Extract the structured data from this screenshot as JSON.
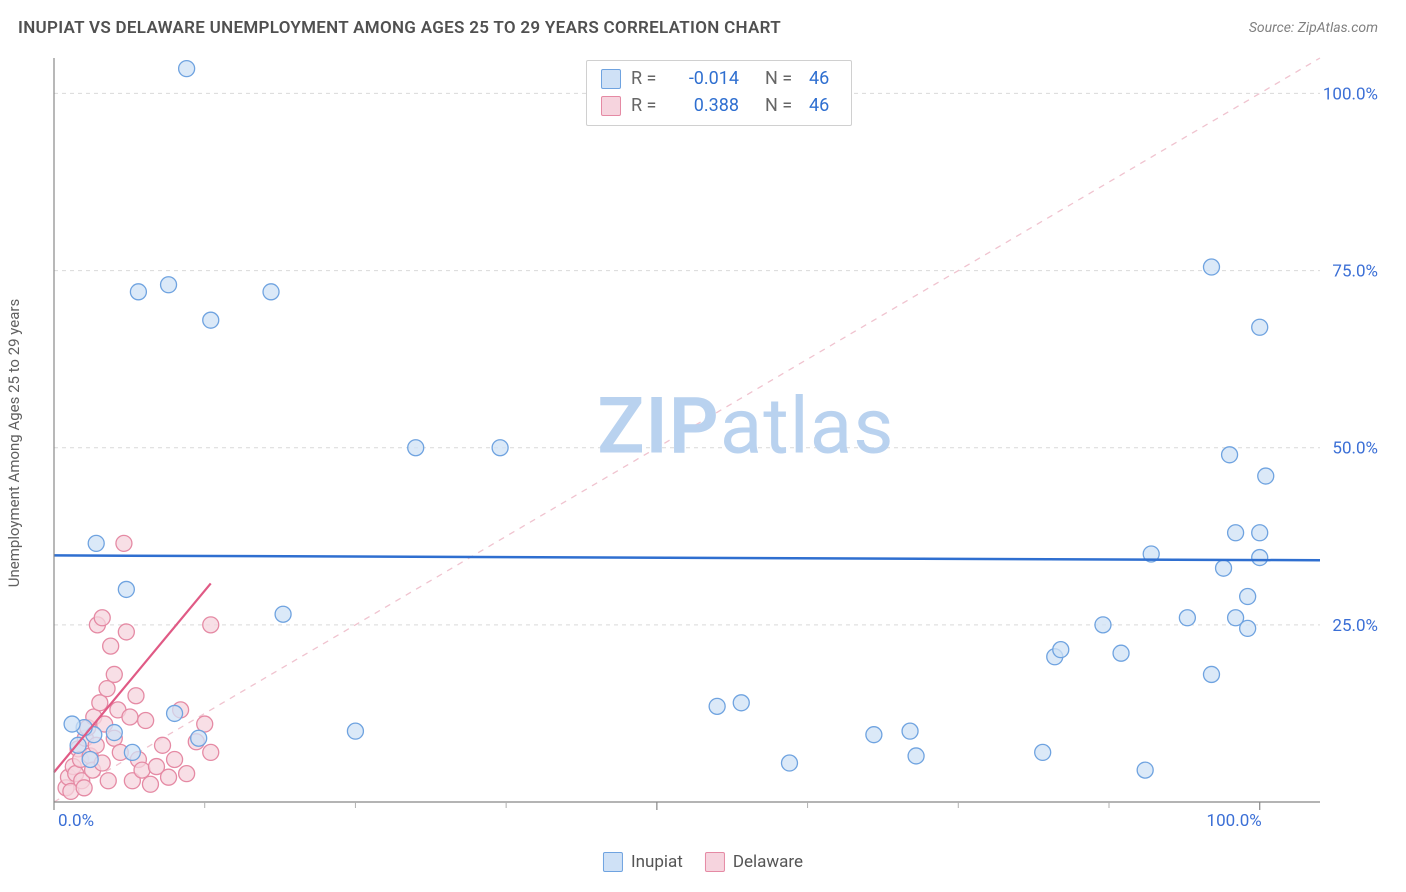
{
  "title": "INUPIAT VS DELAWARE UNEMPLOYMENT AMONG AGES 25 TO 29 YEARS CORRELATION CHART",
  "source": "Source: ZipAtlas.com",
  "ylabel": "Unemployment Among Ages 25 to 29 years",
  "watermark_bold": "ZIP",
  "watermark_rest": "atlas",
  "watermark_color": "#b9d2ef",
  "chart": {
    "type": "scatter",
    "xlim": [
      0,
      105
    ],
    "ylim": [
      0,
      105
    ],
    "grid_color": "#d9d9d9",
    "grid_dash": "4,4",
    "axis_color": "#888888",
    "tick_color": "#b0b0b0",
    "background": "#ffffff",
    "x_ticks": [
      0,
      50,
      100
    ],
    "x_tick_labels": [
      "0.0%",
      "",
      "100.0%"
    ],
    "x_tick_label_color": "#3b6fd6",
    "x_minor_ticks": [
      12.5,
      25,
      37.5,
      62.5,
      75,
      87.5
    ],
    "y_gridlines": [
      25,
      50,
      75,
      100
    ],
    "y_tick_labels": [
      "25.0%",
      "50.0%",
      "75.0%",
      "100.0%"
    ],
    "y_tick_label_color": "#3b6fd6",
    "marker_radius": 8,
    "marker_stroke_width": 1.3,
    "series": [
      {
        "name": "Inupiat",
        "fill": "#cfe1f6",
        "stroke": "#6fa3e0",
        "trend": {
          "slope": -0.0065,
          "intercept": 34.8,
          "color": "#2f6fd0",
          "width": 2.5,
          "dash": null
        },
        "r": "-0.014",
        "r_color": "#2f6fd0",
        "n": "46",
        "n_color": "#2f6fd0",
        "points": [
          [
            11,
            103.5
          ],
          [
            7,
            72
          ],
          [
            9.5,
            73
          ],
          [
            13,
            68
          ],
          [
            18,
            72
          ],
          [
            3.5,
            36.5
          ],
          [
            6,
            30
          ],
          [
            3.3,
            9.5
          ],
          [
            10,
            12.5
          ],
          [
            12,
            9
          ],
          [
            5,
            9.8
          ],
          [
            2.5,
            10.5
          ],
          [
            3,
            6
          ],
          [
            19,
            26.5
          ],
          [
            25,
            10
          ],
          [
            30,
            50
          ],
          [
            37,
            50
          ],
          [
            55,
            13.5
          ],
          [
            57,
            14
          ],
          [
            61,
            5.5
          ],
          [
            68,
            9.5
          ],
          [
            71,
            10
          ],
          [
            71.5,
            6.5
          ],
          [
            82,
            7
          ],
          [
            83,
            20.5
          ],
          [
            83.5,
            21.5
          ],
          [
            87,
            25
          ],
          [
            88.5,
            21
          ],
          [
            90.5,
            4.5
          ],
          [
            91,
            35
          ],
          [
            94,
            26
          ],
          [
            96,
            18
          ],
          [
            97,
            33
          ],
          [
            97.5,
            49
          ],
          [
            98,
            26
          ],
          [
            98,
            38
          ],
          [
            99,
            29
          ],
          [
            99,
            24.5
          ],
          [
            100,
            38
          ],
          [
            100.5,
            46
          ],
          [
            100,
            34.5
          ],
          [
            96,
            75.5
          ],
          [
            100,
            67
          ],
          [
            1.5,
            11
          ],
          [
            2,
            8
          ],
          [
            6.5,
            7
          ]
        ]
      },
      {
        "name": "Delaware",
        "fill": "#f6d4de",
        "stroke": "#e58aa4",
        "trend": {
          "slope": 2.05,
          "intercept": 4.2,
          "color": "#e05a85",
          "width": 2.2,
          "dash": null
        },
        "trend_x_extent": [
          0,
          13
        ],
        "r": "0.388",
        "r_color": "#2f6fd0",
        "n": "46",
        "n_color": "#2f6fd0",
        "points": [
          [
            1,
            2
          ],
          [
            1.2,
            3.5
          ],
          [
            1.4,
            1.5
          ],
          [
            1.6,
            5
          ],
          [
            1.8,
            4
          ],
          [
            2,
            7.5
          ],
          [
            2.2,
            6
          ],
          [
            2.3,
            3
          ],
          [
            2.5,
            2
          ],
          [
            2.6,
            9
          ],
          [
            2.8,
            10.5
          ],
          [
            3,
            6.5
          ],
          [
            3.2,
            4.5
          ],
          [
            3.3,
            12
          ],
          [
            3.5,
            8
          ],
          [
            3.6,
            25
          ],
          [
            3.8,
            14
          ],
          [
            4,
            26
          ],
          [
            4,
            5.5
          ],
          [
            4.2,
            11
          ],
          [
            4.4,
            16
          ],
          [
            4.5,
            3
          ],
          [
            4.7,
            22
          ],
          [
            5,
            18
          ],
          [
            5,
            9
          ],
          [
            5.3,
            13
          ],
          [
            5.5,
            7
          ],
          [
            5.8,
            36.5
          ],
          [
            6,
            24
          ],
          [
            6.3,
            12
          ],
          [
            6.5,
            3
          ],
          [
            6.8,
            15
          ],
          [
            7,
            6
          ],
          [
            7.3,
            4.5
          ],
          [
            7.6,
            11.5
          ],
          [
            8,
            2.5
          ],
          [
            8.5,
            5
          ],
          [
            9,
            8
          ],
          [
            9.5,
            3.5
          ],
          [
            10,
            6
          ],
          [
            10.5,
            13
          ],
          [
            11,
            4
          ],
          [
            11.8,
            8.5
          ],
          [
            12.5,
            11
          ],
          [
            13,
            7
          ],
          [
            13,
            25
          ]
        ]
      }
    ],
    "diagonal": {
      "color": "#f0c3cf",
      "width": 1.3,
      "dash": "6,6",
      "from": [
        0,
        0
      ],
      "to": [
        105,
        105
      ]
    }
  },
  "legend_bottom": [
    {
      "label": "Inupiat",
      "fill": "#cfe1f6",
      "stroke": "#6fa3e0"
    },
    {
      "label": "Delaware",
      "fill": "#f6d4de",
      "stroke": "#e58aa4"
    }
  ]
}
